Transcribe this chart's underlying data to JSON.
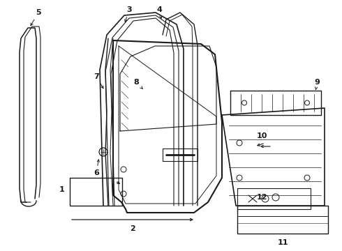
{
  "bg": "#ffffff",
  "lc": "#1a1a1a",
  "lw": 1.0,
  "fig_w": 4.9,
  "fig_h": 3.6,
  "dpi": 100,
  "xlim": [
    0,
    490
  ],
  "ylim": [
    0,
    360
  ]
}
